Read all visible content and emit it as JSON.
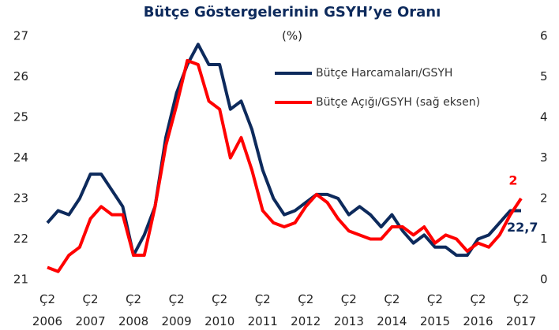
{
  "chart_data": {
    "type": "line",
    "title": "Bütçe Göstergelerinin  GSYH’ye Oranı",
    "subtitle": "(%)",
    "categories": [
      "Ç2 2006",
      null,
      null,
      null,
      "Ç2 2007",
      null,
      null,
      null,
      "Ç2 2008",
      null,
      null,
      null,
      "Ç2 2009",
      null,
      null,
      null,
      "Ç2 2010",
      null,
      null,
      null,
      "Ç2 2011",
      null,
      null,
      null,
      "Ç2 2012",
      null,
      null,
      null,
      "Ç2 2013",
      null,
      null,
      null,
      "Ç2 2014",
      null,
      null,
      null,
      "Ç2 2015",
      null,
      null,
      null,
      "Ç2 2016",
      null,
      null,
      null,
      "Ç2 2017"
    ],
    "series": [
      {
        "name": "Bütçe Harcamaları/GSYH",
        "color": "#0d2a5c",
        "values": [
          22.4,
          22.7,
          22.6,
          23.0,
          23.6,
          23.6,
          23.2,
          22.8,
          21.6,
          22.1,
          22.8,
          24.5,
          25.6,
          26.3,
          26.8,
          26.3,
          26.3,
          25.2,
          25.4,
          24.7,
          23.7,
          23.0,
          22.6,
          22.7,
          22.9,
          23.1,
          23.1,
          23.0,
          22.6,
          22.8,
          22.6,
          22.3,
          22.6,
          22.2,
          21.9,
          22.1,
          21.8,
          21.8,
          21.6,
          21.6,
          22.0,
          22.1,
          22.4,
          22.7,
          22.7
        ],
        "value_labels": [
          null,
          null,
          null,
          null,
          null,
          null,
          null,
          null,
          null,
          null,
          null,
          null,
          null,
          null,
          null,
          null,
          null,
          null,
          null,
          null,
          null,
          null,
          null,
          null,
          null,
          null,
          null,
          null,
          null,
          null,
          null,
          null,
          null,
          null,
          null,
          null,
          null,
          null,
          null,
          null,
          null,
          null,
          null,
          null,
          "22,7"
        ]
      },
      {
        "name": "Bütçe Açığı/GSYH (sağ eksen)",
        "color": "#ff0000",
        "axis": "y2",
        "values": [
          0.3,
          0.2,
          0.6,
          0.8,
          1.5,
          1.8,
          1.6,
          1.6,
          0.6,
          0.6,
          1.8,
          3.3,
          4.3,
          5.4,
          5.3,
          4.4,
          4.2,
          3.0,
          3.5,
          2.7,
          1.7,
          1.4,
          1.3,
          1.4,
          1.8,
          2.1,
          1.9,
          1.5,
          1.2,
          1.1,
          1.0,
          1.0,
          1.3,
          1.3,
          1.1,
          1.3,
          0.9,
          1.1,
          1.0,
          0.7,
          0.9,
          0.8,
          1.1,
          1.6,
          2.0
        ],
        "value_labels": [
          null,
          null,
          null,
          null,
          null,
          null,
          null,
          null,
          null,
          null,
          null,
          null,
          null,
          null,
          null,
          null,
          null,
          null,
          null,
          null,
          null,
          null,
          null,
          null,
          null,
          null,
          null,
          null,
          null,
          null,
          null,
          null,
          null,
          null,
          null,
          null,
          null,
          null,
          null,
          null,
          null,
          null,
          null,
          null,
          "2"
        ]
      }
    ],
    "ylim": [
      21,
      27
    ],
    "yticks": [
      21,
      22,
      23,
      24,
      25,
      26,
      27
    ],
    "y2lim": [
      0,
      6
    ],
    "y2ticks": [
      0,
      1,
      2,
      3,
      4,
      5,
      6
    ],
    "grid": false
  }
}
